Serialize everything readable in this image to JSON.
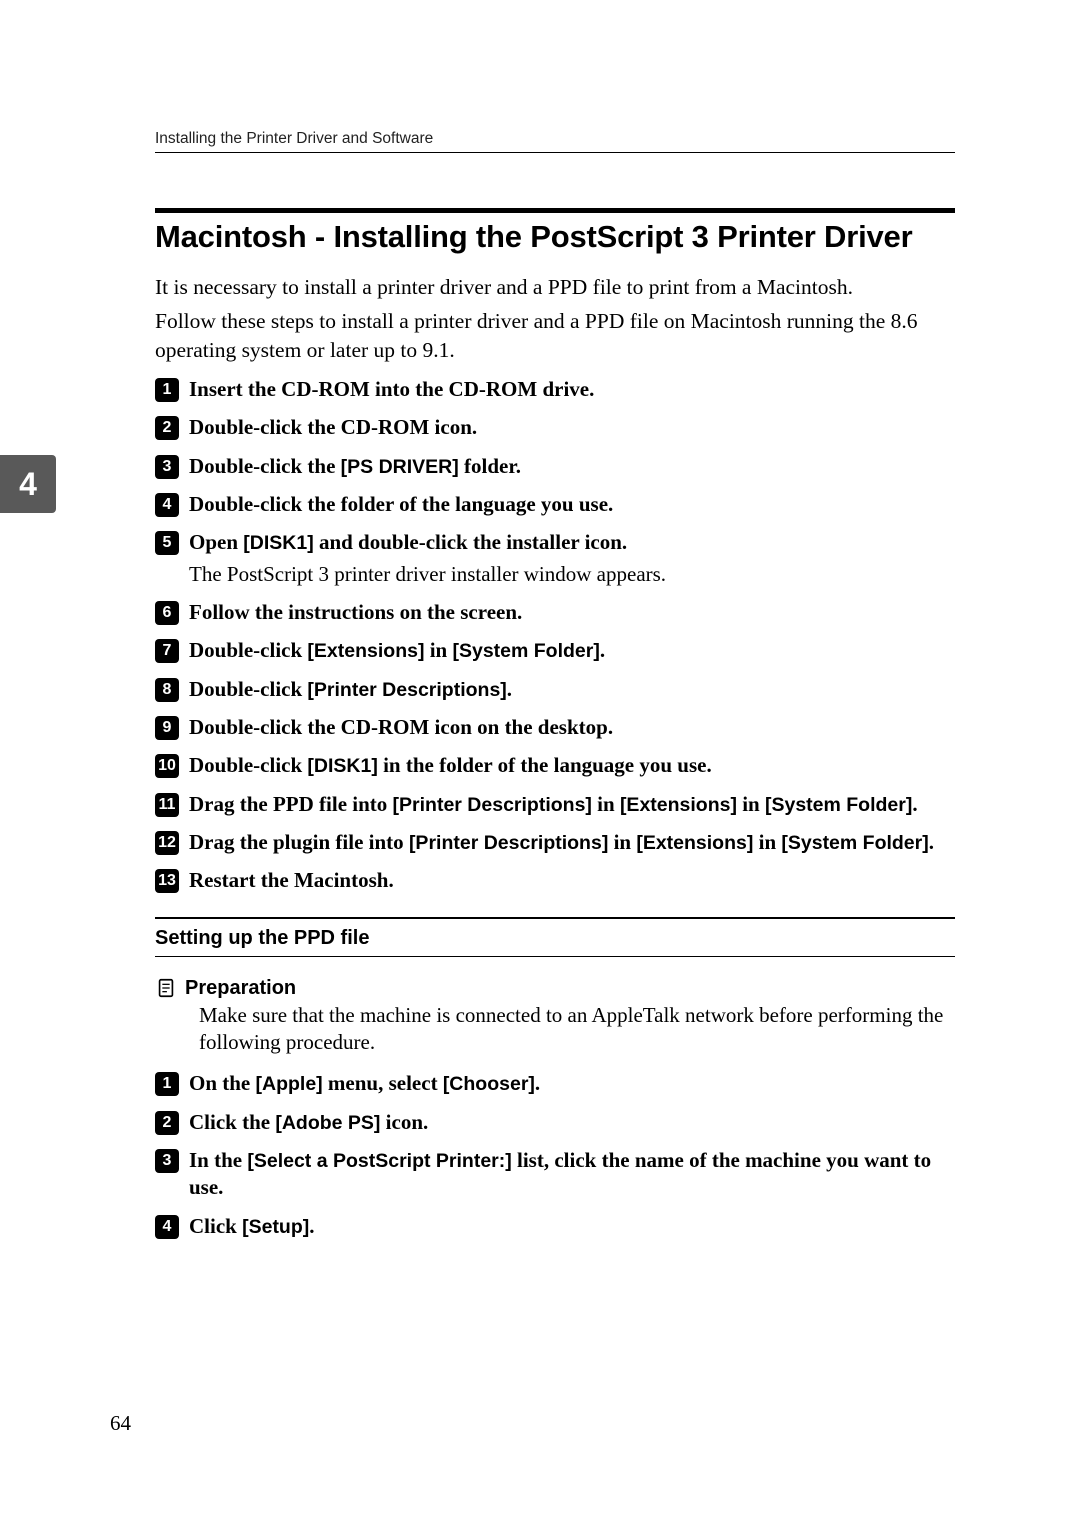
{
  "runningHead": "Installing the Printer Driver and Software",
  "chapterTab": "4",
  "section": {
    "title": "Macintosh - Installing the PostScript 3 Printer Driver",
    "intro1": "It is necessary to install a printer driver and a PPD file to print from a Macintosh.",
    "intro2": "Follow these steps to install a printer driver and a PPD file on Macintosh running the 8.6 operating system or later up to 9.1."
  },
  "steps": [
    {
      "n": "1",
      "parts": [
        "Insert the CD-ROM into the CD-ROM drive."
      ]
    },
    {
      "n": "2",
      "parts": [
        "Double-click the CD-ROM icon."
      ]
    },
    {
      "n": "3",
      "parts": [
        "Double-click the ",
        {
          "sans": "[PS DRIVER]"
        },
        " folder."
      ]
    },
    {
      "n": "4",
      "parts": [
        "Double-click the folder of the language you use."
      ]
    },
    {
      "n": "5",
      "parts": [
        "Open ",
        {
          "sans": "[DISK1]"
        },
        " and double-click the installer icon."
      ],
      "sub": "The PostScript 3 printer driver installer window appears."
    },
    {
      "n": "6",
      "parts": [
        "Follow the instructions on the screen."
      ]
    },
    {
      "n": "7",
      "parts": [
        "Double-click ",
        {
          "sans": "[Extensions]"
        },
        " in ",
        {
          "sans": "[System Folder]"
        },
        "."
      ]
    },
    {
      "n": "8",
      "parts": [
        "Double-click ",
        {
          "sans": "[Printer Descriptions]"
        },
        "."
      ]
    },
    {
      "n": "9",
      "parts": [
        "Double-click the CD-ROM icon on the desktop."
      ]
    },
    {
      "n": "10",
      "parts": [
        "Double-click ",
        {
          "sans": "[DISK1]"
        },
        " in the folder of the language you use."
      ]
    },
    {
      "n": "11",
      "parts": [
        "Drag the PPD file into ",
        {
          "sans": "[Printer Descriptions]"
        },
        " in ",
        {
          "sans": "[Extensions]"
        },
        " in ",
        {
          "sans": "[System Folder]"
        },
        "."
      ]
    },
    {
      "n": "12",
      "parts": [
        "Drag the plugin file into ",
        {
          "sans": "[Printer Descriptions]"
        },
        " in ",
        {
          "sans": "[Extensions]"
        },
        " in ",
        {
          "sans": "[System Folder]"
        },
        "."
      ]
    },
    {
      "n": "13",
      "parts": [
        "Restart the Macintosh."
      ]
    }
  ],
  "subsection": {
    "title": "Setting up the PPD file",
    "prepLabel": "Preparation",
    "prepBody": "Make sure that the machine is connected to an AppleTalk network before performing the following procedure.",
    "steps": [
      {
        "n": "1",
        "parts": [
          "On the ",
          {
            "sans": "[Apple]"
          },
          " menu, select ",
          {
            "sans": "[Chooser]"
          },
          "."
        ]
      },
      {
        "n": "2",
        "parts": [
          "Click the ",
          {
            "sans": "[Adobe PS]"
          },
          " icon."
        ]
      },
      {
        "n": "3",
        "parts": [
          "In the ",
          {
            "sans": "[Select a PostScript Printer:]"
          },
          " list, click the name of the machine you want to use."
        ]
      },
      {
        "n": "4",
        "parts": [
          "Click ",
          {
            "sans": "[Setup]"
          },
          "."
        ]
      }
    ]
  },
  "pageNumber": "64"
}
